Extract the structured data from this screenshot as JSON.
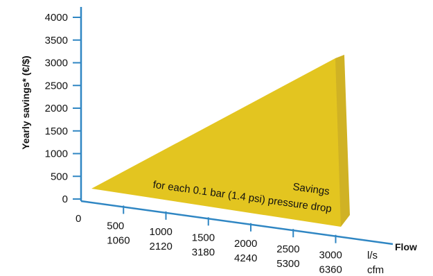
{
  "chart_data": {
    "type": "area",
    "title": "",
    "ylabel": "Yearly savings* (€/$)",
    "xlabel": "Flow",
    "x_unit_primary": "l/s",
    "x_unit_secondary": "cfm",
    "ylim": [
      0,
      4000
    ],
    "xlim": [
      0,
      3000
    ],
    "y_ticks": [
      "0",
      "500",
      "1000",
      "1500",
      "2000",
      "2500",
      "3000",
      "3500",
      "4000"
    ],
    "x_origin_label": "0",
    "x_ticks_primary": [
      "500",
      "1000",
      "1500",
      "2000",
      "2500",
      "3000"
    ],
    "x_ticks_secondary": [
      "1060",
      "2120",
      "3180",
      "4240",
      "5300",
      "6360"
    ],
    "series": [
      {
        "x": [
          0,
          3000
        ],
        "y": [
          0,
          3100
        ]
      }
    ],
    "annotation": {
      "line1": "Savings",
      "line2": "for each 0.1 bar (1.4 psi) pressure drop"
    },
    "colors": {
      "fill": "#e3c520",
      "side": "#d0b224",
      "axis": "#2f86c3"
    }
  }
}
